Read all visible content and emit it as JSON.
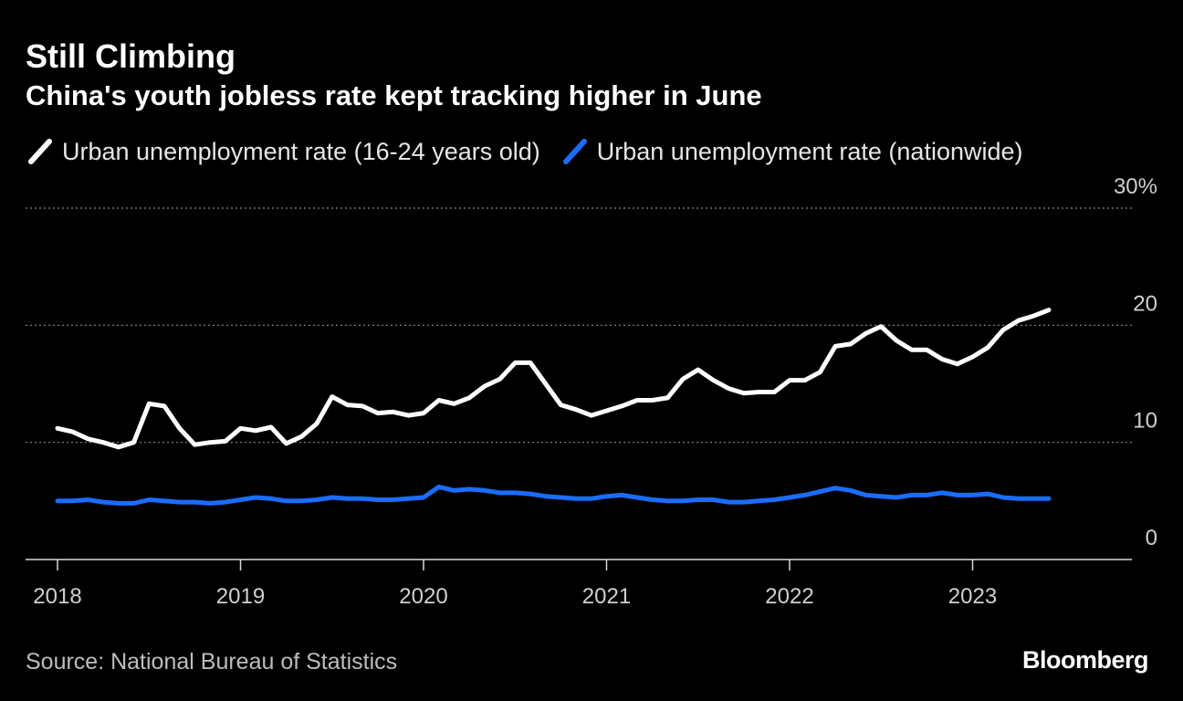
{
  "header": {
    "title": "Still Climbing",
    "subtitle": "China's youth jobless rate kept tracking higher in June"
  },
  "footer": {
    "source": "Source: National Bureau of Statistics",
    "brand": "Bloomberg"
  },
  "colors": {
    "background": "#000000",
    "youth_line": "#ffffff",
    "national_line": "#1a6dff",
    "grid": "#8a8a8a",
    "axis_text": "#cfcfcf"
  },
  "chart_data": {
    "type": "line",
    "title": "Still Climbing",
    "subtitle": "China's youth jobless rate kept tracking higher in June",
    "xlabel": "",
    "ylabel": "",
    "ylim": [
      0,
      30
    ],
    "xlim": [
      "2017-11",
      "2023-12"
    ],
    "y_ticks": [
      {
        "value": 0,
        "label": "0"
      },
      {
        "value": 10,
        "label": "10"
      },
      {
        "value": 20,
        "label": "20"
      },
      {
        "value": 30,
        "label": "30%"
      }
    ],
    "x_ticks": [
      {
        "date": "2018-01",
        "label": "2018"
      },
      {
        "date": "2019-01",
        "label": "2019"
      },
      {
        "date": "2020-01",
        "label": "2020"
      },
      {
        "date": "2021-01",
        "label": "2021"
      },
      {
        "date": "2022-01",
        "label": "2022"
      },
      {
        "date": "2023-01",
        "label": "2023"
      }
    ],
    "grid": "horizontal dotted",
    "legend_position": "top-left",
    "x": [
      "2018-01",
      "2018-02",
      "2018-03",
      "2018-04",
      "2018-05",
      "2018-06",
      "2018-07",
      "2018-08",
      "2018-09",
      "2018-10",
      "2018-11",
      "2018-12",
      "2019-01",
      "2019-02",
      "2019-03",
      "2019-04",
      "2019-05",
      "2019-06",
      "2019-07",
      "2019-08",
      "2019-09",
      "2019-10",
      "2019-11",
      "2019-12",
      "2020-01",
      "2020-02",
      "2020-03",
      "2020-04",
      "2020-05",
      "2020-06",
      "2020-07",
      "2020-08",
      "2020-09",
      "2020-10",
      "2020-11",
      "2020-12",
      "2021-01",
      "2021-02",
      "2021-03",
      "2021-04",
      "2021-05",
      "2021-06",
      "2021-07",
      "2021-08",
      "2021-09",
      "2021-10",
      "2021-11",
      "2021-12",
      "2022-01",
      "2022-02",
      "2022-03",
      "2022-04",
      "2022-05",
      "2022-06",
      "2022-07",
      "2022-08",
      "2022-09",
      "2022-10",
      "2022-11",
      "2022-12",
      "2023-01",
      "2023-02",
      "2023-03",
      "2023-04",
      "2023-05",
      "2023-06"
    ],
    "series": [
      {
        "name": "Urban unemployment rate (16-24 years old)",
        "color": "#ffffff",
        "values": [
          11.2,
          10.9,
          10.3,
          10.0,
          9.6,
          10.0,
          13.3,
          13.1,
          11.2,
          9.8,
          10.0,
          10.1,
          11.2,
          11.0,
          11.3,
          9.9,
          10.5,
          11.6,
          13.9,
          13.2,
          13.1,
          12.5,
          12.6,
          12.3,
          12.5,
          13.6,
          13.3,
          13.8,
          14.8,
          15.4,
          16.8,
          16.8,
          15.0,
          13.2,
          12.8,
          12.3,
          12.7,
          13.1,
          13.6,
          13.6,
          13.8,
          15.4,
          16.2,
          15.3,
          14.6,
          14.2,
          14.3,
          14.3,
          15.3,
          15.3,
          16.0,
          18.2,
          18.4,
          19.3,
          19.9,
          18.7,
          17.9,
          17.9,
          17.1,
          16.7,
          17.3,
          18.1,
          19.6,
          20.4,
          20.8,
          21.3
        ]
      },
      {
        "name": "Urban unemployment rate (nationwide)",
        "color": "#1a6dff",
        "values": [
          5.0,
          5.0,
          5.1,
          4.9,
          4.8,
          4.8,
          5.1,
          5.0,
          4.9,
          4.9,
          4.8,
          4.9,
          5.1,
          5.3,
          5.2,
          5.0,
          5.0,
          5.1,
          5.3,
          5.2,
          5.2,
          5.1,
          5.1,
          5.2,
          5.3,
          6.2,
          5.9,
          6.0,
          5.9,
          5.7,
          5.7,
          5.6,
          5.4,
          5.3,
          5.2,
          5.2,
          5.4,
          5.5,
          5.3,
          5.1,
          5.0,
          5.0,
          5.1,
          5.1,
          4.9,
          4.9,
          5.0,
          5.1,
          5.3,
          5.5,
          5.8,
          6.1,
          5.9,
          5.5,
          5.4,
          5.3,
          5.5,
          5.5,
          5.7,
          5.5,
          5.5,
          5.6,
          5.3,
          5.2,
          5.2,
          5.2
        ]
      }
    ]
  }
}
